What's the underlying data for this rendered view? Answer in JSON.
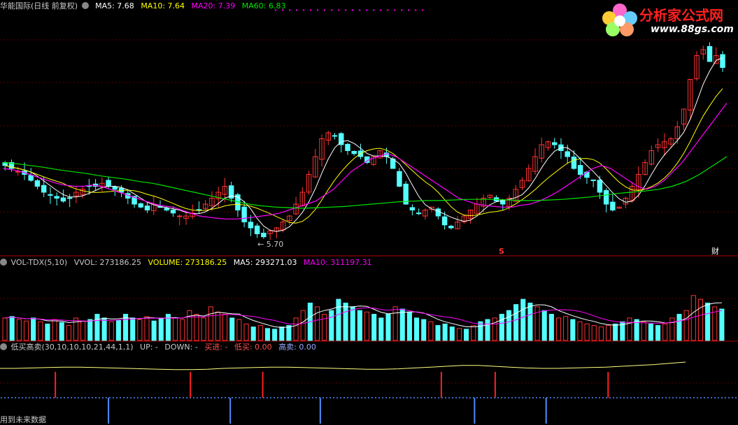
{
  "colors": {
    "up": "#ff3232",
    "down": "#54ffff",
    "ma5": "#ffffff",
    "ma10": "#ffff00",
    "ma20": "#ff00ff",
    "ma60": "#00e600",
    "grid": "#5a0000",
    "divider": "#b40000",
    "vol_ma5": "#ffffff",
    "vol_ma10": "#ff00ff",
    "line_yellow": "#ffff80",
    "buy": "#ff2020",
    "sell": "#4f8cff",
    "dot": "#4f8cff"
  },
  "price_panel": {
    "title": "华能国际(日线 前复权)",
    "ma5": "MA5: 7.68",
    "ma10": "MA10: 7.64",
    "ma20": "MA20: 7.39",
    "ma60": "MA60: 6.83",
    "low_label": "5.70",
    "marker_s": "S",
    "marker_cai": "财",
    "dot_run": "·  ·  ·  ·  ·  ·  · · · ·  ·  ·  ·  ·  ·  ·  ·  ·  ·  ·  ·  ·"
  },
  "volume_panel": {
    "name": "VOL-TDX(5,10)",
    "vvol": "VVOL: 273186.25",
    "volume": "VOLUME: 273186.25",
    "ma5": "MA5: 293271.03",
    "ma10": "MA10: 311197.31"
  },
  "indicator_panel": {
    "name": "低买高卖(30,10,10,10,21,44,1,1)",
    "up": "UP: -",
    "down": "DOWN: -",
    "buy": "买进: -",
    "low_buy": "低买: 0.00",
    "high_sell": "高卖: 0.00",
    "footer": "用到未来数据"
  },
  "logo": {
    "text": "分析家公式网",
    "url": "www.88gs.com"
  },
  "chart_data": [
    {
      "type": "candlestick",
      "name": "",
      "y_axis": "price",
      "ylim": [
        5.5,
        9.5
      ],
      "low_annotation": 5.7,
      "closes": [
        6.95,
        6.9,
        6.85,
        6.8,
        6.7,
        6.6,
        6.5,
        6.45,
        6.4,
        6.35,
        6.4,
        6.5,
        6.55,
        6.6,
        6.6,
        6.65,
        6.6,
        6.55,
        6.5,
        6.4,
        6.3,
        6.25,
        6.2,
        6.3,
        6.25,
        6.2,
        6.15,
        6.1,
        6.1,
        6.15,
        6.2,
        6.3,
        6.4,
        6.5,
        6.6,
        6.4,
        6.2,
        6.0,
        5.9,
        5.8,
        5.75,
        5.85,
        5.9,
        6.0,
        6.1,
        6.3,
        6.5,
        6.8,
        7.1,
        7.4,
        7.5,
        7.45,
        7.3,
        7.2,
        7.15,
        7.1,
        7.0,
        7.1,
        7.2,
        7.1,
        6.9,
        6.6,
        6.3,
        6.2,
        6.15,
        6.2,
        6.25,
        6.1,
        5.95,
        5.9,
        6.0,
        6.1,
        6.2,
        6.3,
        6.4,
        6.45,
        6.35,
        6.3,
        6.4,
        6.55,
        6.7,
        6.9,
        7.1,
        7.3,
        7.35,
        7.3,
        7.2,
        7.1,
        6.9,
        6.8,
        6.75,
        6.7,
        6.5,
        6.3,
        6.2,
        6.25,
        6.4,
        6.6,
        6.8,
        7.0,
        7.2,
        7.3,
        7.35,
        7.4,
        7.6,
        7.9,
        8.4,
        8.8,
        8.9,
        8.7,
        8.8,
        8.6
      ]
    },
    {
      "type": "line",
      "name": "MA20",
      "values": [
        6.9,
        6.88,
        6.85,
        6.8,
        6.75,
        6.7,
        6.65,
        6.62,
        6.6,
        6.6,
        6.62,
        6.6,
        6.55,
        6.5,
        6.45,
        6.4,
        6.35,
        6.3,
        6.27,
        6.25,
        6.2,
        6.15,
        6.1,
        6.08,
        6.06,
        6.05,
        6.05,
        6.06,
        6.08,
        6.1,
        6.12,
        6.15,
        6.2,
        6.25,
        6.3,
        6.35,
        6.45,
        6.55,
        6.7,
        6.85,
        6.95,
        7.05,
        7.1,
        7.15,
        7.1,
        7.0,
        6.9,
        6.8,
        6.7,
        6.6,
        6.5,
        6.4,
        6.35,
        6.3,
        6.28,
        6.26,
        6.25,
        6.25,
        6.28,
        6.3,
        6.35,
        6.42,
        6.5,
        6.6,
        6.7,
        6.8,
        6.9,
        6.95,
        6.9,
        6.8,
        6.7,
        6.6,
        6.55,
        6.6,
        6.7,
        6.85,
        7.0,
        7.2,
        7.4,
        7.6,
        7.8,
        8.0
      ]
    },
    {
      "type": "line",
      "name": "MA60",
      "values": [
        7.0,
        6.98,
        6.95,
        6.92,
        6.88,
        6.85,
        6.82,
        6.78,
        6.75,
        6.72,
        6.68,
        6.65,
        6.6,
        6.55,
        6.5,
        6.45,
        6.4,
        6.35,
        6.3,
        6.27,
        6.25,
        6.24,
        6.23,
        6.24,
        6.25,
        6.26,
        6.28,
        6.3,
        6.32,
        6.34,
        6.35,
        6.36,
        6.36,
        6.37,
        6.38,
        6.38,
        6.38,
        6.37,
        6.36,
        6.36,
        6.37,
        6.38,
        6.4,
        6.42,
        6.45,
        6.48,
        6.5,
        6.52,
        6.55,
        6.6,
        6.68,
        6.8,
        6.95,
        7.1
      ]
    },
    {
      "type": "bar",
      "name": "",
      "y_axis": "volume",
      "values": [
        0.3,
        0.32,
        0.28,
        0.26,
        0.3,
        0.25,
        0.22,
        0.28,
        0.24,
        0.2,
        0.3,
        0.26,
        0.28,
        0.35,
        0.3,
        0.25,
        0.27,
        0.35,
        0.3,
        0.28,
        0.32,
        0.26,
        0.3,
        0.35,
        0.3,
        0.28,
        0.4,
        0.35,
        0.3,
        0.45,
        0.38,
        0.35,
        0.3,
        0.28,
        0.22,
        0.18,
        0.2,
        0.16,
        0.15,
        0.18,
        0.2,
        0.3,
        0.4,
        0.5,
        0.45,
        0.35,
        0.4,
        0.55,
        0.5,
        0.45,
        0.4,
        0.38,
        0.35,
        0.3,
        0.35,
        0.45,
        0.42,
        0.38,
        0.3,
        0.28,
        0.25,
        0.2,
        0.22,
        0.18,
        0.16,
        0.15,
        0.2,
        0.25,
        0.28,
        0.3,
        0.35,
        0.4,
        0.48,
        0.55,
        0.5,
        0.45,
        0.4,
        0.35,
        0.3,
        0.32,
        0.28,
        0.25,
        0.22,
        0.2,
        0.18,
        0.2,
        0.22,
        0.25,
        0.3,
        0.28,
        0.25,
        0.22,
        0.2,
        0.22,
        0.3,
        0.35,
        0.4,
        0.6,
        0.55,
        0.5,
        0.45,
        0.42
      ]
    },
    {
      "type": "line",
      "name": "",
      "values": [
        0.55,
        0.55,
        0.56,
        0.57,
        0.58,
        0.58,
        0.57,
        0.56,
        0.55,
        0.54,
        0.53,
        0.52,
        0.52,
        0.53,
        0.55,
        0.56,
        0.57,
        0.58,
        0.58,
        0.57,
        0.56,
        0.55,
        0.54,
        0.53,
        0.53,
        0.54,
        0.56,
        0.58,
        0.6,
        0.62,
        0.62,
        0.6,
        0.58,
        0.56,
        0.55,
        0.55,
        0.56,
        0.57,
        0.58,
        0.6,
        0.62,
        0.64,
        0.67,
        0.7
      ]
    },
    {
      "type": "event_markers",
      "name": "",
      "buy_positions": [
        0.075,
        0.258,
        0.356,
        0.598,
        0.671,
        0.824
      ],
      "sell_positions": [
        0.147,
        0.312,
        0.434,
        0.643,
        0.74
      ],
      "dot_line": true
    }
  ]
}
